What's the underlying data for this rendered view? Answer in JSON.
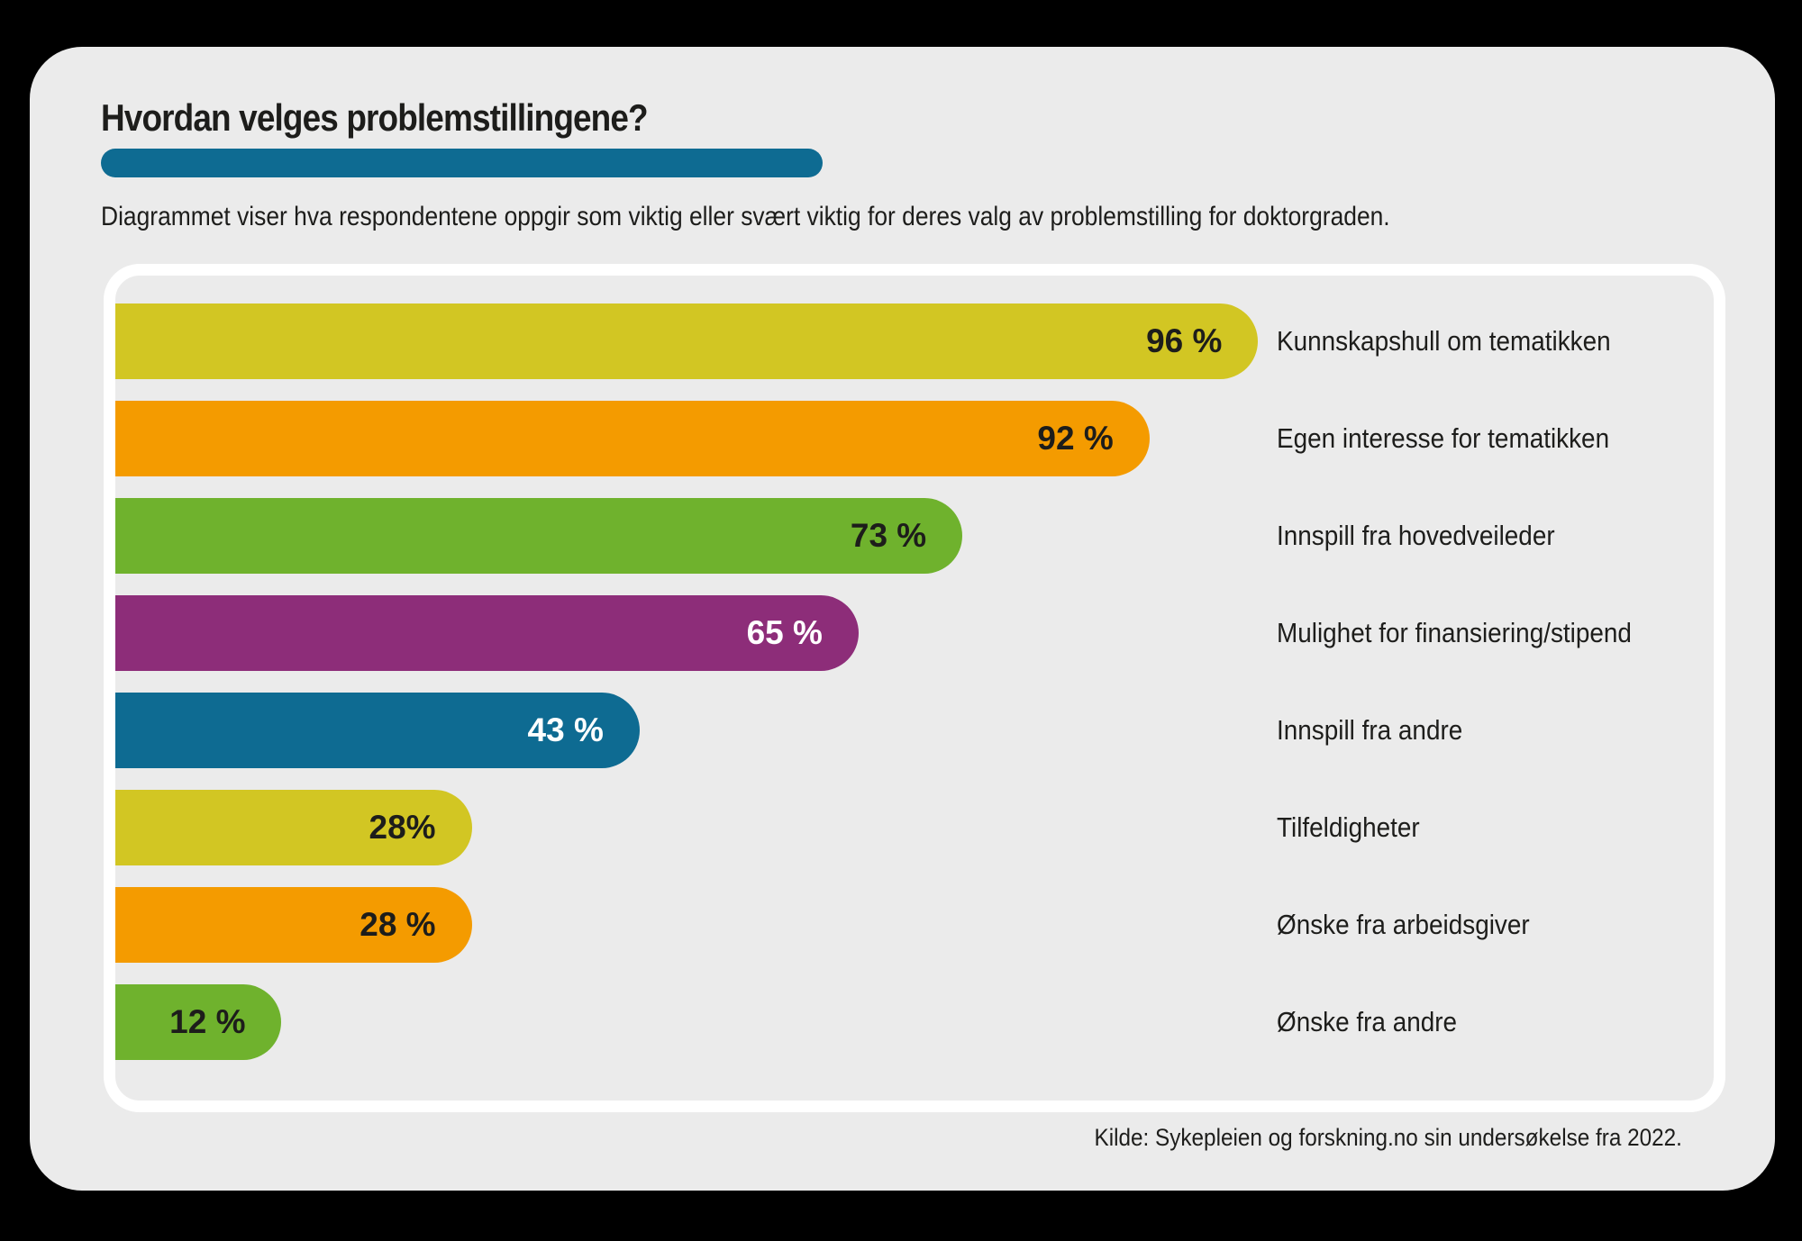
{
  "page": {
    "background_color": "#000000",
    "card_background_color": "#ebebeb",
    "panel_frame_color": "#ffffff",
    "text_color": "#1d1d1b"
  },
  "header": {
    "title": "Hvordan velges problemstillingene?",
    "underline_color": "#0e6b92",
    "subtitle": "Diagrammet viser hva respondentene oppgir som viktig eller svært viktig for deres valg av problemstilling for doktorgraden."
  },
  "chart_data": {
    "type": "bar",
    "orientation": "horizontal",
    "title": "Hvordan velges problemstillingene?",
    "subtitle": "Diagrammet viser hva respondentene oppgir som viktig eller svært viktig for deres valg av problemstilling for doktorgraden.",
    "xlim": [
      0,
      100
    ],
    "grid": false,
    "legend": false,
    "value_label_position": "inside-end",
    "category_label_position": "right-of-bars",
    "categories": [
      "Kunnskapshull om tematikken",
      "Egen interesse for tematikken",
      "Innspill fra hovedveileder",
      "Mulighet for finansiering/stipend",
      "Innspill fra andre",
      "Tilfeldigheter",
      "Ønske fra arbeidsgiver",
      "Ønske fra andre"
    ],
    "values": [
      96,
      92,
      73,
      65,
      43,
      28,
      28,
      12
    ],
    "value_labels": [
      "96 %",
      "92 %",
      "73 %",
      "65 %",
      "43 %",
      "28%",
      "28 %",
      "12 %"
    ],
    "rows": [
      {
        "category": "Kunnskapshull om tematikken",
        "value": 96,
        "display": "96 %",
        "bar_color": "#d2c623",
        "value_text_color": "#1d1d1b",
        "width_pct": 71.5
      },
      {
        "category": "Egen interesse for tematikken",
        "value": 92,
        "display": "92 %",
        "bar_color": "#f49b00",
        "value_text_color": "#1d1d1b",
        "width_pct": 64.7
      },
      {
        "category": "Innspill fra hovedveileder",
        "value": 73,
        "display": "73 %",
        "bar_color": "#6fb22d",
        "value_text_color": "#1d1d1b",
        "width_pct": 53.0
      },
      {
        "category": "Mulighet for finansiering/stipend",
        "value": 65,
        "display": "65 %",
        "bar_color": "#8d2d79",
        "value_text_color": "#ffffff",
        "width_pct": 46.5
      },
      {
        "category": "Innspill fra andre",
        "value": 43,
        "display": "43 %",
        "bar_color": "#0e6b92",
        "value_text_color": "#ffffff",
        "width_pct": 32.8
      },
      {
        "category": "Tilfeldigheter",
        "value": 28,
        "display": "28%",
        "bar_color": "#d2c623",
        "value_text_color": "#1d1d1b",
        "width_pct": 22.3
      },
      {
        "category": "Ønske fra arbeidsgiver",
        "value": 28,
        "display": "28 %",
        "bar_color": "#f49b00",
        "value_text_color": "#1d1d1b",
        "width_pct": 22.3
      },
      {
        "category": "Ønske fra andre",
        "value": 12,
        "display": "12 %",
        "bar_color": "#6fb22d",
        "value_text_color": "#1d1d1b",
        "width_pct": 10.4
      }
    ]
  },
  "footer": {
    "source": "Kilde: Sykepleien og forskning.no sin undersøkelse fra 2022."
  }
}
